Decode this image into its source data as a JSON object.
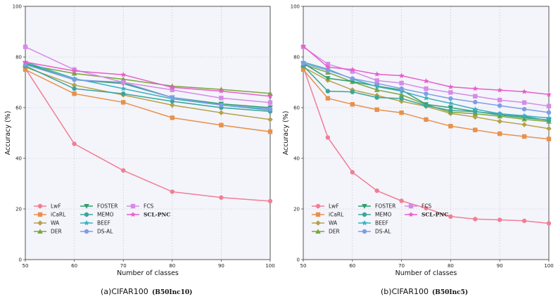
{
  "chart_data": [
    {
      "type": "line",
      "caption": "(a)CIFAR100",
      "caption_tag": "(B50Inc10)",
      "xlabel": "Number of classes",
      "ylabel": "Accuracy (%)",
      "xlim": [
        50,
        100
      ],
      "ylim": [
        0,
        100
      ],
      "xticks": [
        50,
        60,
        70,
        80,
        90,
        100
      ],
      "yticks": [
        0,
        20,
        40,
        60,
        80,
        100
      ],
      "grid": true,
      "legend_position": "bottom-left",
      "x": [
        50,
        60,
        70,
        80,
        90,
        100
      ],
      "series": [
        {
          "name": "LwF",
          "color": "#f07f93",
          "marker": "circle",
          "values": [
            75.5,
            45.7,
            35.2,
            26.8,
            24.5,
            23.1
          ]
        },
        {
          "name": "iCaRL",
          "color": "#e8914a",
          "marker": "square",
          "values": [
            75.0,
            65.5,
            62.1,
            56.0,
            53.1,
            50.5
          ]
        },
        {
          "name": "WA",
          "color": "#b5a24a",
          "marker": "diamond",
          "values": [
            76.0,
            68.9,
            65.0,
            61.0,
            58.0,
            55.3
          ]
        },
        {
          "name": "DER",
          "color": "#7aa63a",
          "marker": "triangle-up",
          "values": [
            77.0,
            73.5,
            71.2,
            68.5,
            67.2,
            65.6
          ]
        },
        {
          "name": "FOSTER",
          "color": "#2e9e6e",
          "marker": "triangle-down",
          "values": [
            77.5,
            71.0,
            69.5,
            64.0,
            61.5,
            60.0
          ]
        },
        {
          "name": "MEMO",
          "color": "#3aa59a",
          "marker": "circle",
          "values": [
            76.5,
            67.5,
            65.5,
            62.5,
            60.0,
            58.5
          ]
        },
        {
          "name": "BEEF",
          "color": "#3ab0c0",
          "marker": "star",
          "values": [
            78.0,
            71.5,
            67.5,
            63.5,
            61.0,
            59.0
          ]
        },
        {
          "name": "DS-AL",
          "color": "#7f9de6",
          "marker": "circle",
          "values": [
            77.0,
            71.0,
            70.0,
            64.0,
            61.0,
            59.5
          ]
        },
        {
          "name": "FCS",
          "color": "#d58be6",
          "marker": "square",
          "values": [
            84.0,
            75.0,
            70.0,
            67.0,
            63.8,
            62.0
          ]
        },
        {
          "name": "SCL-PNC",
          "color": "#e65fc8",
          "marker": "star",
          "values": [
            78.0,
            74.5,
            73.0,
            68.0,
            66.5,
            64.5
          ]
        }
      ]
    },
    {
      "type": "line",
      "caption": "(b)CIFAR100",
      "caption_tag": "(B50Inc5)",
      "xlabel": "Number of classes",
      "ylabel": "Accuracy (%)",
      "xlim": [
        50,
        100
      ],
      "ylim": [
        0,
        100
      ],
      "xticks": [
        50,
        60,
        70,
        80,
        90,
        100
      ],
      "yticks": [
        0,
        20,
        40,
        60,
        80,
        100
      ],
      "grid": true,
      "legend_position": "bottom-left",
      "x": [
        50,
        55,
        60,
        65,
        70,
        75,
        80,
        85,
        90,
        95,
        100
      ],
      "series": [
        {
          "name": "LwF",
          "color": "#f07f93",
          "marker": "circle",
          "values": [
            76.0,
            48.2,
            34.5,
            27.2,
            23.2,
            20.3,
            17.0,
            16.0,
            15.7,
            15.3,
            14.3
          ]
        },
        {
          "name": "iCaRL",
          "color": "#e8914a",
          "marker": "square",
          "values": [
            75.0,
            63.7,
            61.3,
            59.2,
            58.0,
            55.3,
            52.7,
            51.2,
            49.7,
            48.6,
            47.6
          ]
        },
        {
          "name": "WA",
          "color": "#b5a24a",
          "marker": "diamond",
          "values": [
            76.0,
            70.8,
            67.0,
            64.8,
            62.5,
            60.5,
            57.7,
            56.3,
            54.6,
            53.3,
            51.7
          ]
        },
        {
          "name": "DER",
          "color": "#7aa63a",
          "marker": "triangle-up",
          "values": [
            77.0,
            73.9,
            70.2,
            67.0,
            65.1,
            61.2,
            58.2,
            57.6,
            56.6,
            55.4,
            54.5
          ]
        },
        {
          "name": "FOSTER",
          "color": "#2e9e6e",
          "marker": "triangle-down",
          "values": [
            77.5,
            71.6,
            70.3,
            68.5,
            67.0,
            61.3,
            60.0,
            58.5,
            57.1,
            56.0,
            55.1
          ]
        },
        {
          "name": "MEMO",
          "color": "#3aa59a",
          "marker": "circle",
          "values": [
            76.5,
            66.5,
            66.2,
            64.0,
            63.6,
            60.8,
            58.9,
            58.4,
            57.5,
            56.5,
            54.9
          ]
        },
        {
          "name": "BEEF",
          "color": "#3ab0c0",
          "marker": "star",
          "values": [
            78.0,
            75.2,
            71.3,
            68.3,
            66.5,
            63.8,
            61.7,
            59.4,
            57.6,
            56.8,
            55.9
          ]
        },
        {
          "name": "DS-AL",
          "color": "#7f9de6",
          "marker": "circle",
          "values": [
            77.5,
            74.7,
            71.5,
            69.6,
            67.5,
            65.5,
            63.6,
            62.2,
            60.8,
            59.4,
            58.1
          ]
        },
        {
          "name": "FCS",
          "color": "#d58be6",
          "marker": "square",
          "values": [
            84.0,
            77.2,
            74.3,
            70.7,
            69.7,
            67.5,
            66.0,
            64.5,
            63.0,
            62.0,
            60.6
          ]
        },
        {
          "name": "SCL-PNC",
          "color": "#e65fc8",
          "marker": "star",
          "values": [
            84.3,
            76.0,
            75.0,
            73.2,
            72.6,
            70.5,
            68.2,
            67.5,
            66.9,
            66.3,
            65.2
          ]
        }
      ]
    }
  ]
}
